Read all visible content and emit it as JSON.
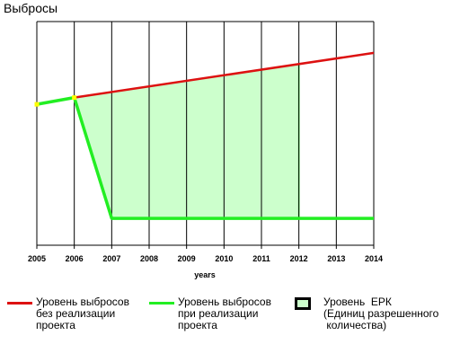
{
  "chart_data": {
    "type": "line",
    "title": "Выбросы",
    "xlabel": "years",
    "ylabel": "",
    "x": [
      2005,
      2006,
      2007,
      2008,
      2009,
      2010,
      2011,
      2012,
      2013,
      2014
    ],
    "tick_labels": [
      "2005",
      "2006",
      "2007",
      "2008",
      "2009",
      "2010",
      "2011",
      "2012",
      "2013",
      "2014"
    ],
    "xlim": [
      2005,
      2014
    ],
    "ylim": [
      0,
      100
    ],
    "grid": "vertical",
    "series": [
      {
        "name": "Уровень выбросов без реализации проекта",
        "color": "#dd1111",
        "x": [
          2005,
          2006,
          2014
        ],
        "values": [
          63,
          66,
          86
        ]
      },
      {
        "name": "Уровень выбросов при реализации проекта",
        "color": "#22ee22",
        "x": [
          2005,
          2006,
          2007,
          2014
        ],
        "values": [
          63,
          66,
          12,
          12
        ]
      }
    ],
    "area": {
      "name": "Уровень ЕРК (Единиц разрешенного количества)",
      "fill": "#ccffcc",
      "edge": "#22ee22",
      "x_range": [
        2006,
        2012
      ]
    },
    "markers": {
      "color": "#ffff00",
      "x": [
        2005,
        2006
      ]
    },
    "legend_position": "bottom"
  },
  "legend": {
    "items": [
      {
        "key": "baseline",
        "text": "Уровень выбросов\nбез реализации\nпроекта",
        "color": "#dd1111"
      },
      {
        "key": "project",
        "text": "Уровень выбросов\nпри реализации\nпроекта",
        "color": "#22ee22"
      },
      {
        "key": "erk",
        "text": "Уровень  ЕРК\n(Единиц разрешенного\n количества)",
        "fill": "#ccffcc",
        "border": "#000000"
      }
    ]
  }
}
